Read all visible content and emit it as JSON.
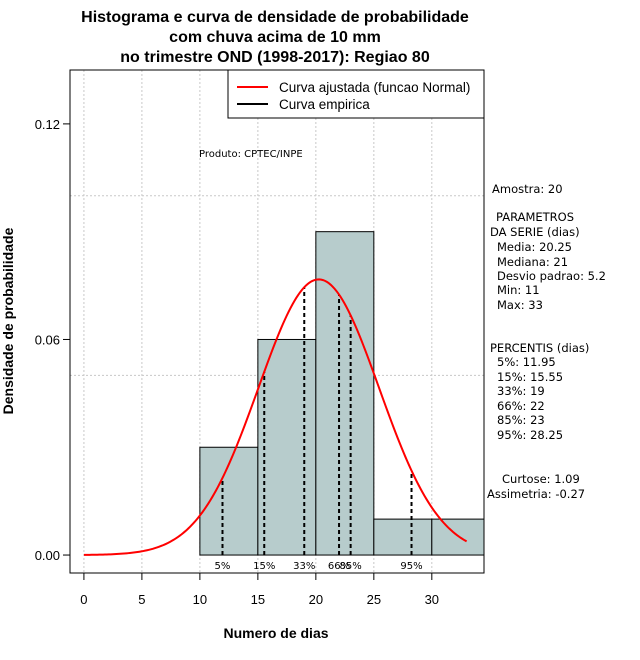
{
  "chart_data": {
    "type": "bar",
    "title_lines": [
      "Histograma e curva de densidade de probabilidade",
      "com chuva acima de 10 mm",
      "no trimestre OND (1998-2017): Regiao 80"
    ],
    "xlabel": "Numero de dias",
    "ylabel": "Densidade de probabilidade",
    "xlim": [
      -1.2,
      34.5
    ],
    "ylim": [
      -0.005,
      0.135
    ],
    "x_ticks": [
      0,
      5,
      10,
      15,
      20,
      25,
      30
    ],
    "y_ticks": [
      0.0,
      0.06,
      0.12
    ],
    "y_tick_labels": [
      "0.00",
      "0.06",
      "0.12"
    ],
    "grid": true,
    "grid_x": [
      0,
      5,
      10,
      15,
      20,
      25,
      30
    ],
    "grid_y": [
      0.05,
      0.1
    ],
    "histogram": {
      "bin_edges": [
        10,
        15,
        20,
        25,
        30,
        35
      ],
      "density": [
        0.03,
        0.06,
        0.09,
        0.01,
        0.01
      ],
      "fill_color": "#b7cccc"
    },
    "normal_curve": {
      "name": "Curva ajustada (funcao Normal)",
      "mean": 20.25,
      "sd": 5.2,
      "x_range": [
        0,
        33
      ],
      "color": "#ff0000"
    },
    "legend": {
      "position": "top-right",
      "entries": [
        {
          "label": "Curva ajustada (funcao Normal)",
          "color": "#ff0000"
        },
        {
          "label": "Curva empirica",
          "color": "#000000"
        }
      ]
    },
    "percentiles": [
      {
        "label": "5%",
        "x": 11.95
      },
      {
        "label": "15%",
        "x": 15.55
      },
      {
        "label": "33%",
        "x": 19
      },
      {
        "label": "66%",
        "x": 22
      },
      {
        "label": "85%",
        "x": 23
      },
      {
        "label": "95%",
        "x": 28.25
      }
    ],
    "produto": "Produto: CPTEC/INPE",
    "side_panel": {
      "amostra": "Amostra: 20",
      "param_title_1": "PARAMETROS",
      "param_title_2": "DA SERIE (dias)",
      "media": "Media: 20.25",
      "mediana": "Mediana: 21",
      "desvio": "Desvio padrao: 5.2",
      "min": "Min: 11",
      "max": "Max: 33",
      "perc_title": "PERCENTIS (dias)",
      "p5": "5%: 11.95",
      "p15": "15%: 15.55",
      "p33": "33%: 19",
      "p66": "66%: 22",
      "p85": "85%: 23",
      "p95": "95%: 28.25",
      "curtose": "Curtose: 1.09",
      "assimetria": "Assimetria: -0.27"
    }
  }
}
